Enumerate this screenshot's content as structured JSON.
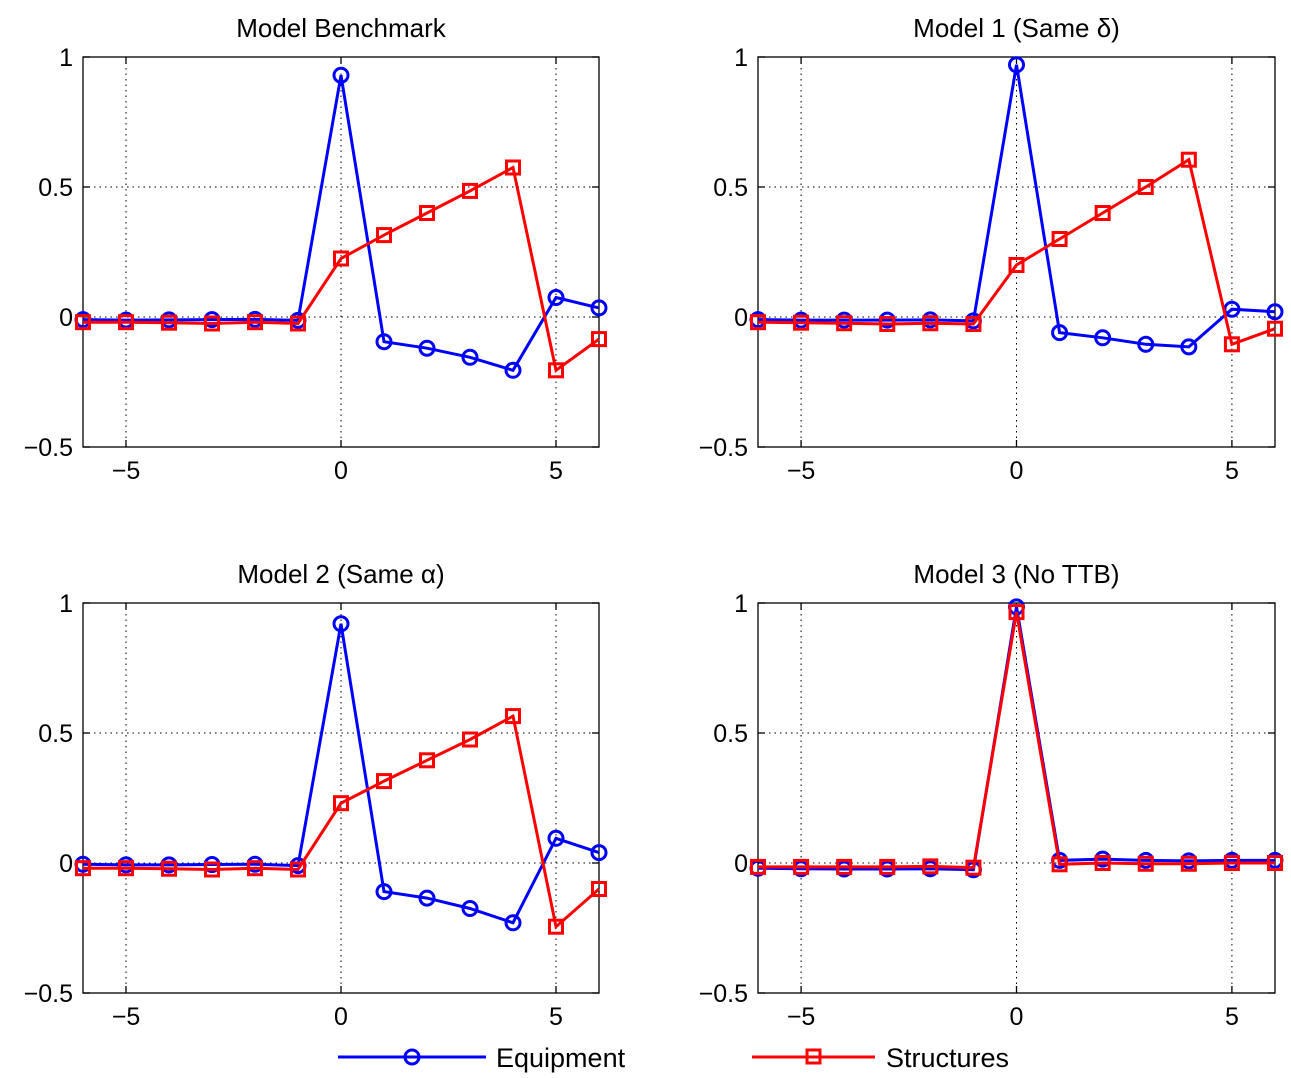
{
  "chart_data": [
    {
      "type": "line",
      "title": "Model Benchmark",
      "xlim": [
        -6,
        6
      ],
      "ylim": [
        -0.5,
        1
      ],
      "xticks": [
        -5,
        0,
        5
      ],
      "yticks": [
        -0.5,
        0,
        0.5,
        1
      ],
      "grid": true,
      "x": [
        -6,
        -5,
        -4,
        -3,
        -2,
        -1,
        0,
        1,
        2,
        3,
        4,
        5,
        6
      ],
      "series": [
        {
          "name": "Equipment",
          "color": "#0000ff",
          "marker": "circle",
          "values": [
            -0.01,
            -0.012,
            -0.011,
            -0.01,
            -0.009,
            -0.013,
            0.93,
            -0.095,
            -0.12,
            -0.155,
            -0.205,
            0.075,
            0.035
          ]
        },
        {
          "name": "Structures",
          "color": "#ff0000",
          "marker": "square",
          "values": [
            -0.02,
            -0.02,
            -0.022,
            -0.025,
            -0.02,
            -0.025,
            0.225,
            0.315,
            0.4,
            0.485,
            0.575,
            -0.205,
            -0.085
          ]
        }
      ]
    },
    {
      "type": "line",
      "title": "Model 1 (Same δ)",
      "xlim": [
        -6,
        6
      ],
      "ylim": [
        -0.5,
        1
      ],
      "xticks": [
        -5,
        0,
        5
      ],
      "yticks": [
        -0.5,
        0,
        0.5,
        1
      ],
      "grid": true,
      "x": [
        -6,
        -5,
        -4,
        -3,
        -2,
        -1,
        0,
        1,
        2,
        3,
        4,
        5,
        6
      ],
      "series": [
        {
          "name": "Equipment",
          "color": "#0000ff",
          "marker": "circle",
          "values": [
            -0.01,
            -0.012,
            -0.012,
            -0.012,
            -0.011,
            -0.015,
            0.97,
            -0.06,
            -0.08,
            -0.105,
            -0.115,
            0.03,
            0.02
          ]
        },
        {
          "name": "Structures",
          "color": "#ff0000",
          "marker": "square",
          "values": [
            -0.02,
            -0.022,
            -0.024,
            -0.027,
            -0.024,
            -0.027,
            0.2,
            0.3,
            0.4,
            0.5,
            0.605,
            -0.105,
            -0.045
          ]
        }
      ]
    },
    {
      "type": "line",
      "title": "Model 2 (Same α)",
      "xlim": [
        -6,
        6
      ],
      "ylim": [
        -0.5,
        1
      ],
      "xticks": [
        -5,
        0,
        5
      ],
      "yticks": [
        -0.5,
        0,
        0.5,
        1
      ],
      "grid": true,
      "x": [
        -6,
        -5,
        -4,
        -3,
        -2,
        -1,
        0,
        1,
        2,
        3,
        4,
        5,
        6
      ],
      "series": [
        {
          "name": "Equipment",
          "color": "#0000ff",
          "marker": "circle",
          "values": [
            -0.005,
            -0.007,
            -0.007,
            -0.006,
            -0.005,
            -0.01,
            0.92,
            -0.11,
            -0.135,
            -0.175,
            -0.23,
            0.095,
            0.04
          ]
        },
        {
          "name": "Structures",
          "color": "#ff0000",
          "marker": "square",
          "values": [
            -0.02,
            -0.02,
            -0.022,
            -0.025,
            -0.02,
            -0.025,
            0.23,
            0.315,
            0.395,
            0.475,
            0.565,
            -0.245,
            -0.1
          ]
        }
      ]
    },
    {
      "type": "line",
      "title": "Model 3 (No TTB)",
      "xlim": [
        -6,
        6
      ],
      "ylim": [
        -0.5,
        1
      ],
      "xticks": [
        -5,
        0,
        5
      ],
      "yticks": [
        -0.5,
        0,
        0.5,
        1
      ],
      "grid": true,
      "x": [
        -6,
        -5,
        -4,
        -3,
        -2,
        -1,
        0,
        1,
        2,
        3,
        4,
        5,
        6
      ],
      "series": [
        {
          "name": "Equipment",
          "color": "#0000ff",
          "marker": "circle",
          "values": [
            -0.02,
            -0.022,
            -0.023,
            -0.023,
            -0.022,
            -0.026,
            0.985,
            0.01,
            0.015,
            0.01,
            0.008,
            0.01,
            0.01
          ]
        },
        {
          "name": "Structures",
          "color": "#ff0000",
          "marker": "square",
          "values": [
            -0.015,
            -0.015,
            -0.015,
            -0.015,
            -0.013,
            -0.018,
            0.965,
            -0.005,
            0.0,
            -0.003,
            -0.003,
            0.0,
            0.0
          ]
        }
      ]
    }
  ],
  "legend": {
    "placement": "bottom-center",
    "entries": [
      {
        "label": "Equipment",
        "color": "#0000ff",
        "marker": "circle"
      },
      {
        "label": "Structures",
        "color": "#ff0000",
        "marker": "square"
      }
    ]
  }
}
